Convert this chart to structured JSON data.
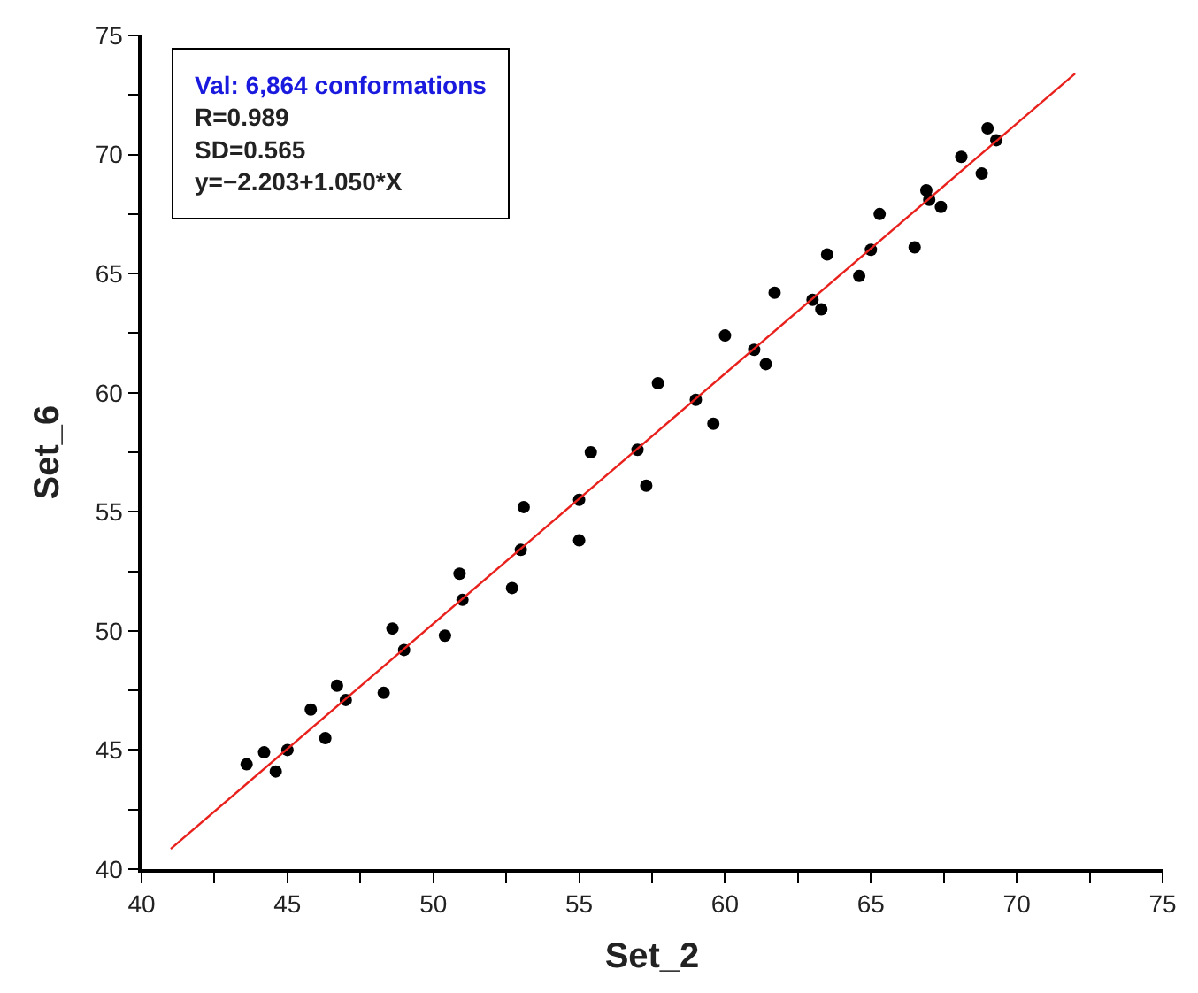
{
  "chart_data": {
    "type": "scatter",
    "xlabel": "Set_2",
    "ylabel": "Set_6",
    "annotations": [
      "Val: 6,864 conformations",
      "R=0.989",
      "SD=0.565",
      "y=−2.203+1.050*X"
    ],
    "xlim": [
      40,
      75
    ],
    "ylim": [
      40,
      75
    ],
    "xticks": [
      40,
      {
        "value": 42.5,
        "label": null
      },
      45,
      {
        "value": 47.5,
        "label": null
      },
      50,
      {
        "value": 52.5,
        "label": null
      },
      55,
      {
        "value": 57.5,
        "label": null
      },
      60,
      {
        "value": 62.5,
        "label": null
      },
      65,
      {
        "value": 67.5,
        "label": null
      },
      70,
      {
        "value": 72.5,
        "label": null
      },
      75
    ],
    "yticks": [
      40,
      {
        "value": 42.5,
        "label": null
      },
      45,
      {
        "value": 47.5,
        "label": null
      },
      50,
      {
        "value": 52.5,
        "label": null
      },
      55,
      {
        "value": 57.5,
        "label": null
      },
      60,
      {
        "value": 62.5,
        "label": null
      },
      65,
      {
        "value": 67.5,
        "label": null
      },
      70,
      {
        "value": 72.5,
        "label": null
      },
      75
    ],
    "marker": "circle",
    "series": [
      {
        "color": "#000000",
        "x": [
          43.6,
          44.2,
          45.8,
          46.7,
          48.6,
          50.9,
          53.1,
          55.4,
          57.7,
          60.0,
          61.7,
          63.5,
          65.3,
          66.9,
          68.1,
          69.0,
          44.6,
          46.3,
          48.3,
          50.4,
          52.7,
          55.0,
          57.3,
          59.6,
          61.4,
          63.3,
          64.6,
          66.5,
          67.4,
          68.8,
          45.0,
          47.0,
          49.0,
          51.0,
          53.0,
          55.0,
          57.0,
          59.0,
          61.0,
          63.0,
          65.0,
          67.0,
          69.3
        ],
        "values": [
          44.4,
          44.9,
          46.7,
          47.7,
          50.1,
          52.4,
          55.2,
          57.5,
          60.4,
          62.4,
          64.2,
          65.8,
          67.5,
          68.5,
          69.9,
          71.1,
          44.1,
          45.5,
          47.4,
          49.8,
          51.8,
          53.8,
          56.1,
          58.7,
          61.2,
          63.5,
          64.9,
          66.1,
          67.8,
          69.2,
          45.0,
          47.1,
          49.2,
          51.3,
          53.4,
          55.5,
          57.6,
          59.7,
          61.8,
          63.9,
          66.0,
          68.1,
          70.6
        ]
      },
      {
        "type": "line",
        "color": "#e8211d",
        "x": [
          41,
          72
        ],
        "values": [
          40.85,
          73.4
        ],
        "marker": "none"
      }
    ]
  }
}
